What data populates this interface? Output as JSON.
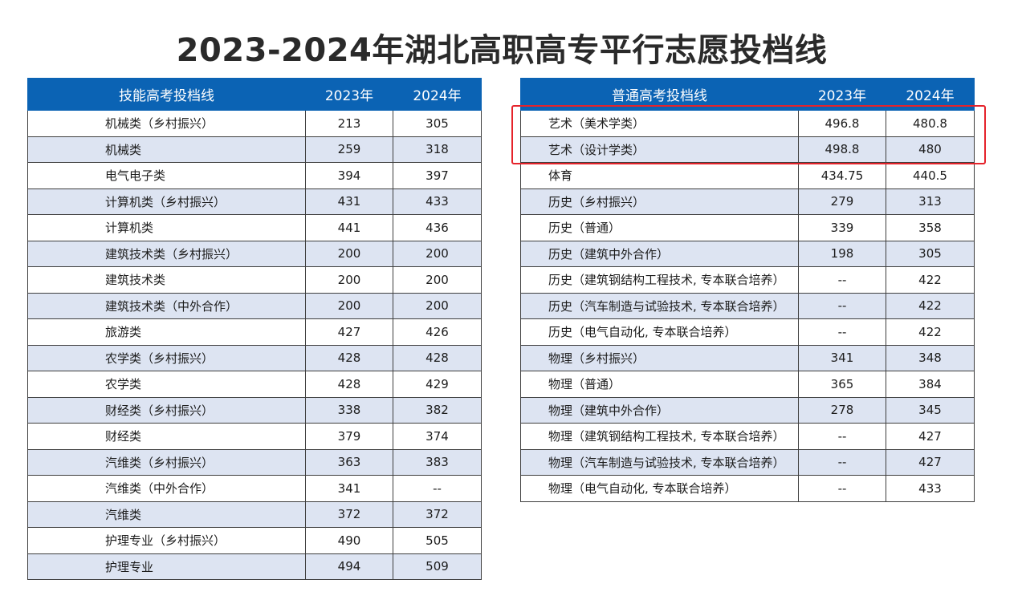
{
  "title": "2023-2024年湖北高职高专平行志愿投档线",
  "accent_color": "#0b63b4",
  "highlight_color": "#e5232b",
  "left_table": {
    "headers": [
      "技能高考投档线",
      "2023年",
      "2024年"
    ],
    "rows": [
      [
        "机械类（乡村振兴）",
        "213",
        "305"
      ],
      [
        "机械类",
        "259",
        "318"
      ],
      [
        "电气电子类",
        "394",
        "397"
      ],
      [
        "计算机类（乡村振兴）",
        "431",
        "433"
      ],
      [
        "计算机类",
        "441",
        "436"
      ],
      [
        "建筑技术类（乡村振兴）",
        "200",
        "200"
      ],
      [
        "建筑技术类",
        "200",
        "200"
      ],
      [
        "建筑技术类（中外合作）",
        "200",
        "200"
      ],
      [
        "旅游类",
        "427",
        "426"
      ],
      [
        "农学类（乡村振兴）",
        "428",
        "428"
      ],
      [
        "农学类",
        "428",
        "429"
      ],
      [
        "财经类（乡村振兴）",
        "338",
        "382"
      ],
      [
        "财经类",
        "379",
        "374"
      ],
      [
        "汽维类（乡村振兴）",
        "363",
        "383"
      ],
      [
        "汽维类（中外合作）",
        "341",
        "--"
      ],
      [
        "汽维类",
        "372",
        "372"
      ],
      [
        "护理专业（乡村振兴）",
        "490",
        "505"
      ],
      [
        "护理专业",
        "494",
        "509"
      ]
    ]
  },
  "right_table": {
    "headers": [
      "普通高考投档线",
      "2023年",
      "2024年"
    ],
    "rows": [
      [
        "艺术（美术学类）",
        "496.8",
        "480.8"
      ],
      [
        "艺术（设计学类）",
        "498.8",
        "480"
      ],
      [
        "体育",
        "434.75",
        "440.5"
      ],
      [
        "历史（乡村振兴）",
        "279",
        "313"
      ],
      [
        "历史（普通）",
        "339",
        "358"
      ],
      [
        "历史（建筑中外合作）",
        "198",
        "305"
      ],
      [
        "历史（建筑钢结构工程技术, 专本联合培养）",
        "--",
        "422"
      ],
      [
        "历史（汽车制造与试验技术, 专本联合培养）",
        "--",
        "422"
      ],
      [
        "历史（电气自动化, 专本联合培养）",
        "--",
        "422"
      ],
      [
        "物理（乡村振兴）",
        "341",
        "348"
      ],
      [
        "物理（普通）",
        "365",
        "384"
      ],
      [
        "物理（建筑中外合作）",
        "278",
        "345"
      ],
      [
        "物理（建筑钢结构工程技术, 专本联合培养）",
        "--",
        "427"
      ],
      [
        "物理（汽车制造与试验技术, 专本联合培养）",
        "--",
        "427"
      ],
      [
        "物理（电气自动化, 专本联合培养）",
        "--",
        "433"
      ]
    ]
  }
}
